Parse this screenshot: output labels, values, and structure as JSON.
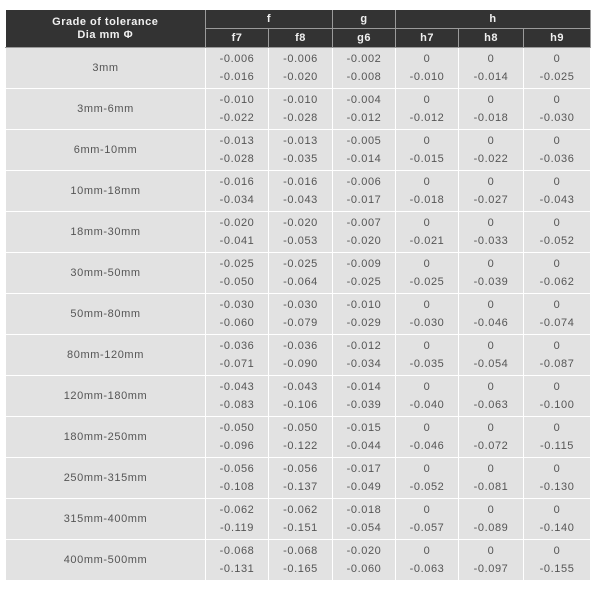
{
  "header": {
    "grade_line1": "Grade of tolerance",
    "grade_line2": "Dia mm Φ",
    "groups": [
      "f",
      "g",
      "h"
    ],
    "columns": [
      "f7",
      "f8",
      "g6",
      "h7",
      "h8",
      "h9"
    ]
  },
  "rows": [
    {
      "dia": "3mm",
      "vals": [
        [
          "-0.006",
          "-0.016"
        ],
        [
          "-0.006",
          "-0.020"
        ],
        [
          "-0.002",
          "-0.008"
        ],
        [
          "0",
          "-0.010"
        ],
        [
          "0",
          "-0.014"
        ],
        [
          "0",
          "-0.025"
        ]
      ]
    },
    {
      "dia": "3mm-6mm",
      "vals": [
        [
          "-0.010",
          "-0.022"
        ],
        [
          "-0.010",
          "-0.028"
        ],
        [
          "-0.004",
          "-0.012"
        ],
        [
          "0",
          "-0.012"
        ],
        [
          "0",
          "-0.018"
        ],
        [
          "0",
          "-0.030"
        ]
      ]
    },
    {
      "dia": "6mm-10mm",
      "vals": [
        [
          "-0.013",
          "-0.028"
        ],
        [
          "-0.013",
          "-0.035"
        ],
        [
          "-0.005",
          "-0.014"
        ],
        [
          "0",
          "-0.015"
        ],
        [
          "0",
          "-0.022"
        ],
        [
          "0",
          "-0.036"
        ]
      ]
    },
    {
      "dia": "10mm-18mm",
      "vals": [
        [
          "-0.016",
          "-0.034"
        ],
        [
          "-0.016",
          "-0.043"
        ],
        [
          "-0.006",
          "-0.017"
        ],
        [
          "0",
          "-0.018"
        ],
        [
          "0",
          "-0.027"
        ],
        [
          "0",
          "-0.043"
        ]
      ]
    },
    {
      "dia": "18mm-30mm",
      "vals": [
        [
          "-0.020",
          "-0.041"
        ],
        [
          "-0.020",
          "-0.053"
        ],
        [
          "-0.007",
          "-0.020"
        ],
        [
          "0",
          "-0.021"
        ],
        [
          "0",
          "-0.033"
        ],
        [
          "0",
          "-0.052"
        ]
      ]
    },
    {
      "dia": "30mm-50mm",
      "vals": [
        [
          "-0.025",
          "-0.050"
        ],
        [
          "-0.025",
          "-0.064"
        ],
        [
          "-0.009",
          "-0.025"
        ],
        [
          "0",
          "-0.025"
        ],
        [
          "0",
          "-0.039"
        ],
        [
          "0",
          "-0.062"
        ]
      ]
    },
    {
      "dia": "50mm-80mm",
      "vals": [
        [
          "-0.030",
          "-0.060"
        ],
        [
          "-0.030",
          "-0.079"
        ],
        [
          "-0.010",
          "-0.029"
        ],
        [
          "0",
          "-0.030"
        ],
        [
          "0",
          "-0.046"
        ],
        [
          "0",
          "-0.074"
        ]
      ]
    },
    {
      "dia": "80mm-120mm",
      "vals": [
        [
          "-0.036",
          "-0.071"
        ],
        [
          "-0.036",
          "-0.090"
        ],
        [
          "-0.012",
          "-0.034"
        ],
        [
          "0",
          "-0.035"
        ],
        [
          "0",
          "-0.054"
        ],
        [
          "0",
          "-0.087"
        ]
      ]
    },
    {
      "dia": "120mm-180mm",
      "vals": [
        [
          "-0.043",
          "-0.083"
        ],
        [
          "-0.043",
          "-0.106"
        ],
        [
          "-0.014",
          "-0.039"
        ],
        [
          "0",
          "-0.040"
        ],
        [
          "0",
          "-0.063"
        ],
        [
          "0",
          "-0.100"
        ]
      ]
    },
    {
      "dia": "180mm-250mm",
      "vals": [
        [
          "-0.050",
          "-0.096"
        ],
        [
          "-0.050",
          "-0.122"
        ],
        [
          "-0.015",
          "-0.044"
        ],
        [
          "0",
          "-0.046"
        ],
        [
          "0",
          "-0.072"
        ],
        [
          "0",
          "-0.115"
        ]
      ]
    },
    {
      "dia": "250mm-315mm",
      "vals": [
        [
          "-0.056",
          "-0.108"
        ],
        [
          "-0.056",
          "-0.137"
        ],
        [
          "-0.017",
          "-0.049"
        ],
        [
          "0",
          "-0.052"
        ],
        [
          "0",
          "-0.081"
        ],
        [
          "0",
          "-0.130"
        ]
      ]
    },
    {
      "dia": "315mm-400mm",
      "vals": [
        [
          "-0.062",
          "-0.119"
        ],
        [
          "-0.062",
          "-0.151"
        ],
        [
          "-0.018",
          "-0.054"
        ],
        [
          "0",
          "-0.057"
        ],
        [
          "0",
          "-0.089"
        ],
        [
          "0",
          "-0.140"
        ]
      ]
    },
    {
      "dia": "400mm-500mm",
      "vals": [
        [
          "-0.068",
          "-0.131"
        ],
        [
          "-0.068",
          "-0.165"
        ],
        [
          "-0.020",
          "-0.060"
        ],
        [
          "0",
          "-0.063"
        ],
        [
          "0",
          "-0.097"
        ],
        [
          "0",
          "-0.155"
        ]
      ]
    }
  ],
  "colors": {
    "header_bg": "#333333",
    "cell_bg": "#e2e2e2",
    "text": "#555555"
  }
}
